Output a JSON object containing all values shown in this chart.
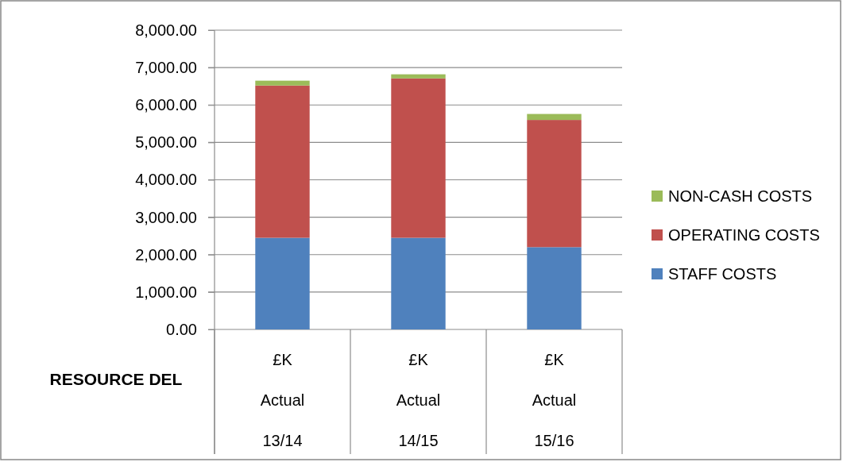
{
  "chart_data": {
    "type": "bar",
    "stacked": true,
    "xlabel": "RESOURCE DEL",
    "categories": [
      "£K Actual 13/14",
      "£K Actual 14/15",
      "£K Actual 15/16"
    ],
    "series": [
      {
        "name": "STAFF COSTS",
        "color": "#4f81bd",
        "values": [
          2450,
          2450,
          2200
        ]
      },
      {
        "name": "OPERATING COSTS",
        "color": "#c0504d",
        "values": [
          4070,
          4260,
          3400
        ]
      },
      {
        "name": "NON-CASH COSTS",
        "color": "#9bbb59",
        "values": [
          130,
          110,
          160
        ]
      }
    ],
    "ylim": [
      0,
      8000
    ],
    "yticks": [
      {
        "value": 0,
        "label": "0.00"
      },
      {
        "value": 1000,
        "label": "1,000.00"
      },
      {
        "value": 2000,
        "label": "2,000.00"
      },
      {
        "value": 3000,
        "label": "3,000.00"
      },
      {
        "value": 4000,
        "label": "4,000.00"
      },
      {
        "value": 5000,
        "label": "5,000.00"
      },
      {
        "value": 6000,
        "label": "6,000.00"
      },
      {
        "value": 7000,
        "label": "7,000.00"
      },
      {
        "value": 8000,
        "label": "8,000.00"
      }
    ],
    "grid": "y",
    "legend": "right"
  }
}
